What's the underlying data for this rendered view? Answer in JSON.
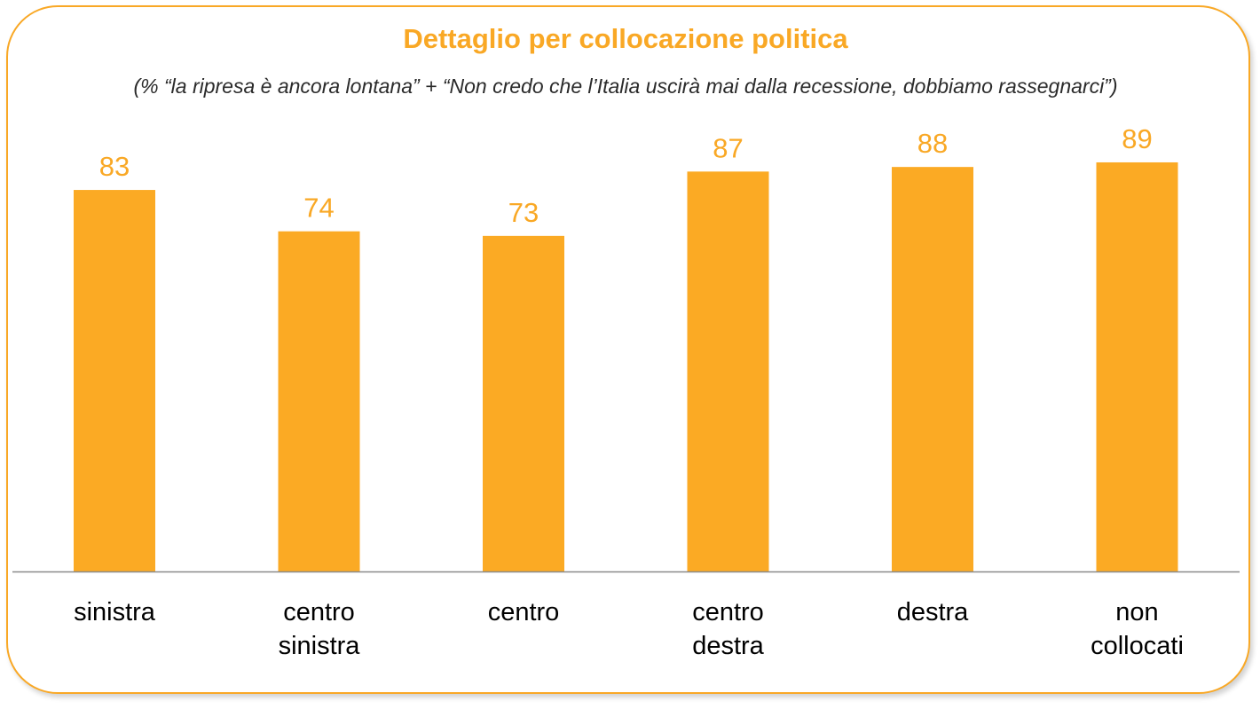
{
  "title": "Dettaglio per collocazione politica",
  "subtitle": "(% “la ripresa è ancora lontana” + “Non credo che l’Italia uscirà mai dalla recessione, dobbiamo rassegnarci”)",
  "colors": {
    "accent": "#F9A825",
    "bar": "#FBAA24",
    "axis": "#8a8a8a"
  },
  "chart_data": {
    "type": "bar",
    "categories": [
      "sinistra",
      "centro sinistra",
      "centro",
      "centro destra",
      "destra",
      "non collocati"
    ],
    "category_lines": [
      [
        "sinistra"
      ],
      [
        "centro",
        "sinistra"
      ],
      [
        "centro"
      ],
      [
        "centro",
        "destra"
      ],
      [
        "destra"
      ],
      [
        "non",
        "collocati"
      ]
    ],
    "values": [
      83,
      74,
      73,
      87,
      88,
      89
    ],
    "ylim": [
      0,
      100
    ],
    "grid": false,
    "legend": "none",
    "data_labels": true
  }
}
